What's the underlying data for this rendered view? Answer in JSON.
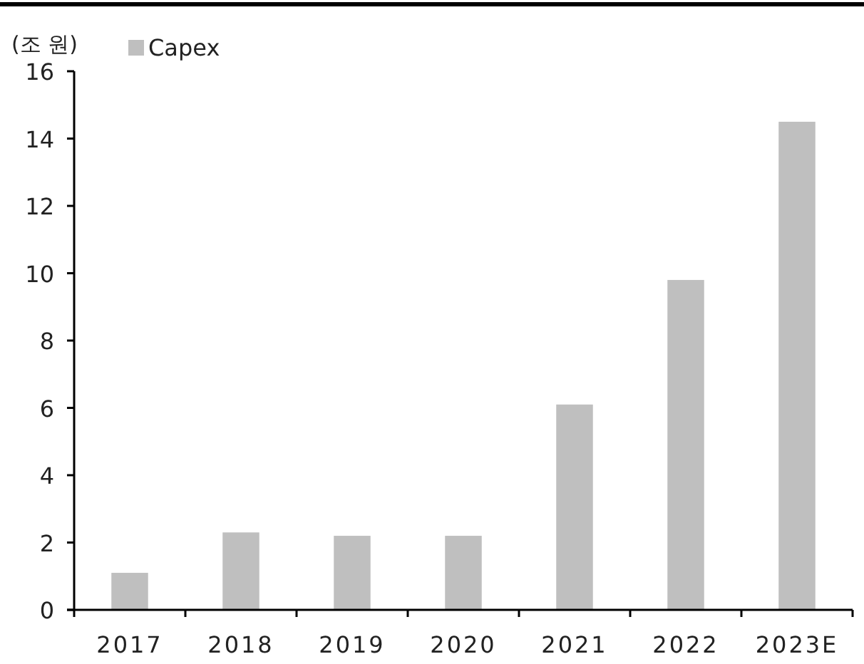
{
  "chart_data": {
    "type": "bar",
    "ylabel": "(조 원)",
    "categories": [
      "2017",
      "2018",
      "2019",
      "2020",
      "2021",
      "2022",
      "2023E"
    ],
    "series": [
      {
        "name": "Capex",
        "color": "#bfbfbf",
        "values": [
          1.1,
          2.3,
          2.2,
          2.2,
          6.1,
          9.8,
          14.5
        ]
      }
    ],
    "ylim": [
      0,
      16
    ],
    "yticks": [
      0,
      2,
      4,
      6,
      8,
      10,
      12,
      14,
      16
    ],
    "grid": false,
    "legend": "top left"
  }
}
